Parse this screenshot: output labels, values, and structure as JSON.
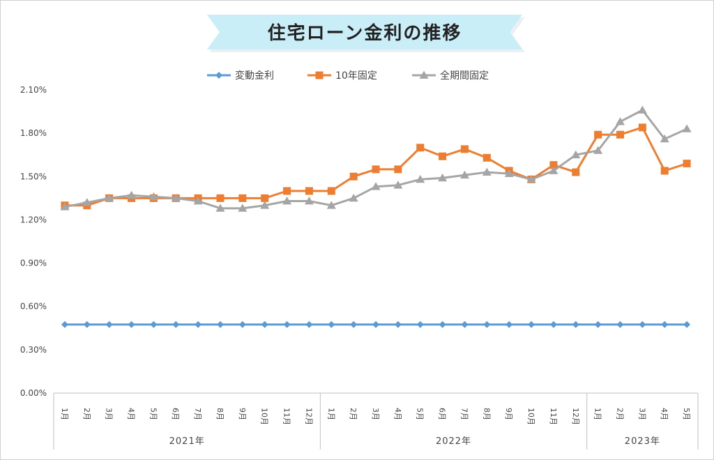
{
  "chart_data": {
    "type": "line",
    "title": "住宅ローン金利の推移",
    "ylim": [
      0,
      2.1
    ],
    "yticks": [
      "0.00%",
      "0.30%",
      "0.60%",
      "0.90%",
      "1.20%",
      "1.50%",
      "1.80%",
      "2.10%"
    ],
    "ytick_values": [
      0,
      0.3,
      0.6,
      0.9,
      1.2,
      1.5,
      1.8,
      2.1
    ],
    "categories": [
      "1月",
      "2月",
      "3月",
      "4月",
      "5月",
      "6月",
      "7月",
      "8月",
      "9月",
      "10月",
      "11月",
      "12月",
      "1月",
      "2月",
      "3月",
      "4月",
      "5月",
      "6月",
      "7月",
      "8月",
      "9月",
      "10月",
      "11月",
      "12月",
      "1月",
      "2月",
      "3月",
      "4月",
      "5月"
    ],
    "year_groups": [
      {
        "label": "2021年",
        "count": 12
      },
      {
        "label": "2022年",
        "count": 12
      },
      {
        "label": "2023年",
        "count": 5
      }
    ],
    "legend_position": "top",
    "grid": false,
    "series": [
      {
        "name": "変動金利",
        "color": "#5b9bd5",
        "marker": "diamond",
        "values": [
          0.475,
          0.475,
          0.475,
          0.475,
          0.475,
          0.475,
          0.475,
          0.475,
          0.475,
          0.475,
          0.475,
          0.475,
          0.475,
          0.475,
          0.475,
          0.475,
          0.475,
          0.475,
          0.475,
          0.475,
          0.475,
          0.475,
          0.475,
          0.475,
          0.475,
          0.475,
          0.475,
          0.475,
          0.475
        ]
      },
      {
        "name": "10年固定",
        "color": "#ed7d31",
        "marker": "square",
        "values": [
          1.3,
          1.3,
          1.35,
          1.35,
          1.35,
          1.35,
          1.35,
          1.35,
          1.35,
          1.35,
          1.4,
          1.4,
          1.4,
          1.5,
          1.55,
          1.55,
          1.7,
          1.64,
          1.69,
          1.63,
          1.54,
          1.48,
          1.58,
          1.53,
          1.79,
          1.79,
          1.84,
          1.54,
          1.59
        ]
      },
      {
        "name": "全期間固定",
        "color": "#a5a5a5",
        "marker": "triangle",
        "values": [
          1.29,
          1.32,
          1.35,
          1.37,
          1.36,
          1.35,
          1.33,
          1.28,
          1.28,
          1.3,
          1.33,
          1.33,
          1.3,
          1.35,
          1.43,
          1.44,
          1.48,
          1.49,
          1.51,
          1.53,
          1.52,
          1.48,
          1.54,
          1.65,
          1.68,
          1.88,
          1.96,
          1.76,
          1.83
        ]
      }
    ]
  },
  "colors": {
    "title_banner": "#c9eef7",
    "axis": "#bfbfbf"
  }
}
